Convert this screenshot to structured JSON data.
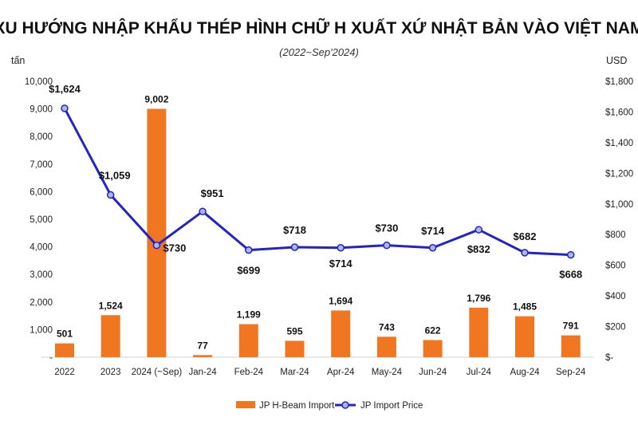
{
  "chart_data": {
    "type": "bar+line",
    "title": "XU HƯỚNG NHẬP KHẨU THÉP HÌNH CHỮ H XUẤT XỨ NHẬT BẢN VÀO VIỆT NAM",
    "subtitle": "(2022~Sep'2024)",
    "y_left_unit": "tấn",
    "y_right_unit": "USD",
    "categories": [
      "2022",
      "2023",
      "2024 (~Sep)",
      "Jan-24",
      "Feb-24",
      "Mar-24",
      "Apr-24",
      "May-24",
      "Jun-24",
      "Jul-24",
      "Aug-24",
      "Sep-24"
    ],
    "y_left_ticks": [
      "-",
      "1,000",
      "2,000",
      "3,000",
      "4,000",
      "5,000",
      "6,000",
      "7,000",
      "8,000",
      "9,000",
      "10,000"
    ],
    "y_right_ticks": [
      "$-",
      "$200",
      "$400",
      "$600",
      "$800",
      "$1,000",
      "$1,200",
      "$1,400",
      "$1,600",
      "$1,800"
    ],
    "ylim_left": [
      0,
      10000
    ],
    "ylim_right": [
      0,
      1800
    ],
    "bar_series": {
      "name": "JP H-Beam Import",
      "color": "#F07622",
      "values": [
        501,
        1524,
        9002,
        77,
        1199,
        595,
        1694,
        743,
        622,
        1796,
        1485,
        791
      ],
      "labels": [
        "501",
        "1,524",
        "9,002",
        "77",
        "1,199",
        "595",
        "1,694",
        "743",
        "622",
        "1,796",
        "1,485",
        "791"
      ]
    },
    "line_series": {
      "name": "JP Import Price",
      "color": "#2323C8",
      "values": [
        1624,
        1059,
        730,
        951,
        699,
        718,
        714,
        730,
        714,
        832,
        682,
        668
      ],
      "labels": [
        "$1,624",
        "$1,059",
        "$730",
        "$951",
        "$699",
        "$718",
        "$714",
        "$730",
        "$714",
        "$832",
        "$682",
        "$668"
      ]
    },
    "legend_position": "bottom",
    "grid": false
  }
}
